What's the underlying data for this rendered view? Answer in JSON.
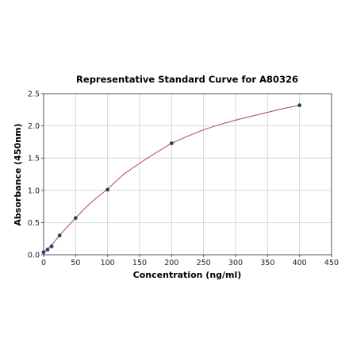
{
  "chart_data": {
    "type": "scatter",
    "title": "Representative Standard Curve for A80326",
    "xlabel": "Concentration (ng/ml)",
    "ylabel": "Absorbance (450nm)",
    "xlim": [
      0,
      450
    ],
    "ylim": [
      0,
      2.5
    ],
    "xticks": [
      "0",
      "50",
      "100",
      "150",
      "200",
      "250",
      "300",
      "350",
      "400",
      "450"
    ],
    "yticks": [
      "0.0",
      "0.5",
      "1.0",
      "1.5",
      "2.0",
      "2.5"
    ],
    "grid": true,
    "legend": "none",
    "series": [
      {
        "x": [
          0,
          6.25,
          12.5,
          25,
          50,
          100,
          200,
          400
        ],
        "y": [
          0.04,
          0.08,
          0.13,
          0.3,
          0.57,
          1.01,
          1.73,
          2.32
        ]
      }
    ],
    "fit_curve": {
      "x": [
        0,
        6.25,
        12.5,
        25,
        37.5,
        50,
        62.5,
        75,
        100,
        125,
        150,
        175,
        200,
        225,
        250,
        275,
        300,
        325,
        350,
        375,
        400
      ],
      "y": [
        0.04,
        0.09,
        0.15,
        0.3,
        0.44,
        0.57,
        0.7,
        0.82,
        1.02,
        1.25,
        1.42,
        1.58,
        1.73,
        1.84,
        1.94,
        2.02,
        2.09,
        2.15,
        2.21,
        2.27,
        2.32
      ]
    },
    "colors": {
      "curve": "#b5536e",
      "points": "#2e3f6b",
      "grid": "#d0d0d0"
    }
  }
}
